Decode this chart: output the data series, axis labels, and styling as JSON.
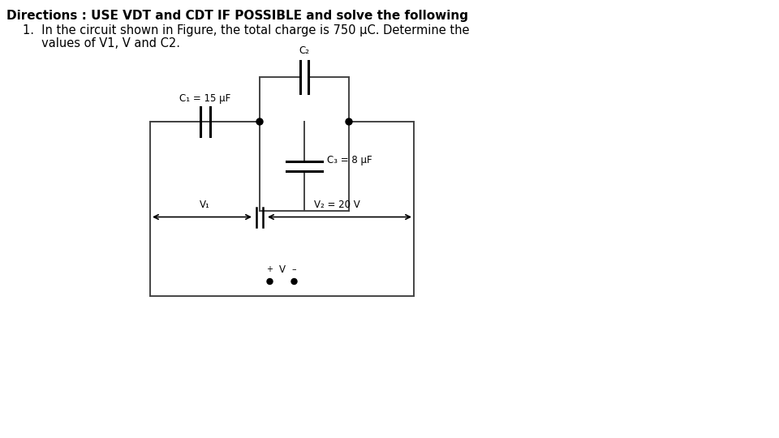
{
  "title_line1": "Directions : USE VDT and CDT IF POSSIBLE and solve the following",
  "problem_line1": "1.  In the circuit shown in Figure, the total charge is 750 μC. Determine the",
  "problem_line2": "     values of V1, V and C2.",
  "bg_color": "#ffffff",
  "text_color": "#000000",
  "circuit_color": "#444444",
  "c1_label": "C₁ = 15 μF",
  "c2_label": "C₂",
  "c3_label": "C₃ = 8 μF",
  "v1_label": "V₁",
  "v2_label": "V₂ = 20 V",
  "v_label": "V",
  "font_size_title": 11,
  "font_size_body": 10.5,
  "font_size_circuit": 8.5
}
